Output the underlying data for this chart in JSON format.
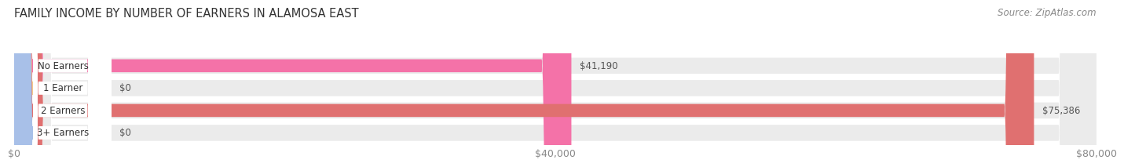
{
  "title": "FAMILY INCOME BY NUMBER OF EARNERS IN ALAMOSA EAST",
  "source": "Source: ZipAtlas.com",
  "categories": [
    "No Earners",
    "1 Earner",
    "2 Earners",
    "3+ Earners"
  ],
  "values": [
    41190,
    0,
    75386,
    0
  ],
  "bar_colors": [
    "#F472A8",
    "#F5C98A",
    "#E07070",
    "#A8C0E8"
  ],
  "bar_bg_color": "#EBEBEB",
  "value_labels": [
    "$41,190",
    "$0",
    "$75,386",
    "$0"
  ],
  "xlim": [
    0,
    80000
  ],
  "xticks": [
    0,
    40000,
    80000
  ],
  "xticklabels": [
    "$0",
    "$40,000",
    "$80,000"
  ],
  "title_fontsize": 10.5,
  "source_fontsize": 8.5,
  "bar_label_fontsize": 8.5,
  "value_fontsize": 8.5,
  "background_color": "#FFFFFF"
}
